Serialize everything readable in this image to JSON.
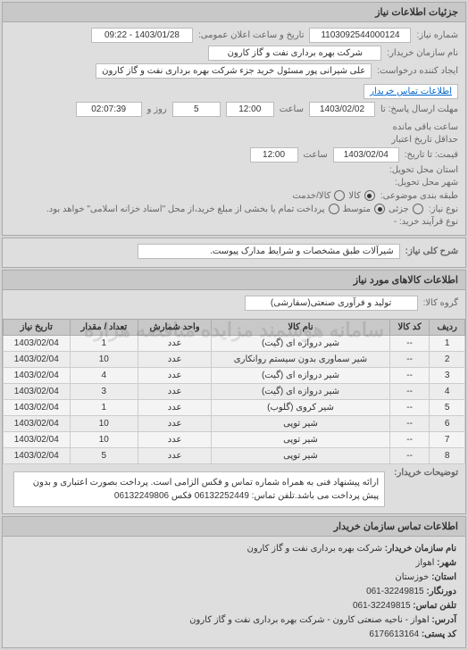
{
  "header": {
    "title": "جزئیات اطلاعات نیاز"
  },
  "info": {
    "request_no_label": "شماره نیاز:",
    "request_no": "1103092544000124",
    "announce_label": "تاریخ و ساعت اعلان عمومی:",
    "announce_value": "1403/01/28 - 09:22",
    "buyer_org_label": "نام سازمان خریدار:",
    "buyer_org": "شرکت بهره برداری نفت و گاز کارون",
    "requester_label": "ایجاد کننده درخواست:",
    "requester": "علی شیرانی پور مسئول خرید جزء شرکت بهره برداری نفت و گاز کارون",
    "buyer_contact_link": "اطلاعات تماس خریدار",
    "send_deadline_label": "مهلت ارسال پاسخ: تا",
    "send_date": "1403/02/02",
    "time_label": "ساعت",
    "send_time": "12:00",
    "remain_day_val": "5",
    "remain_day_label": "روز و",
    "remain_time": "02:07:39",
    "remain_time_label": "ساعت باقی مانده",
    "validity_label": "حداقل تاریخ اعتبار",
    "validity_label2": "قیمت: تا تاریخ:",
    "validity_date": "1403/02/04",
    "validity_time": "12:00",
    "province_label": "استان محل تحویل:",
    "city_label": "شهر محل تحویل:",
    "budget_label": "طبقه بندی موضوعی:",
    "budget_options": {
      "o1": "کالا",
      "o2": "کالا/خدمت"
    },
    "need_type_label": "نوع نیاز:",
    "need_options": {
      "o1": "جزئی",
      "o2": "متوسط",
      "o3": "پرداخت تمام یا بخشی از مبلغ خرید،از محل \"اسناد خزانه اسلامی\" خواهد بود."
    },
    "contract_type_label": "نوع قرآیند خرید: -"
  },
  "desc": {
    "label": "شرح کلی نیاز:",
    "value": "شیرآلات طبق مشخصات و شرایط مدارک پیوست."
  },
  "goods": {
    "title": "اطلاعات کالاهای مورد نیاز",
    "group_label": "گروه کالا:",
    "group_value": "تولید و فرآوری صنعتی(سفارشی)",
    "table": {
      "columns": [
        "ردیف",
        "کد کالا",
        "نام کالا",
        "واحد شمارش",
        "تعداد / مقدار",
        "تاریخ نیاز"
      ],
      "rows": [
        [
          "1",
          "--",
          "شیر دروازه ای (گیت)",
          "عدد",
          "1",
          "1403/02/04"
        ],
        [
          "2",
          "--",
          "شیر سماوری بدون سیستم روانکاری",
          "عدد",
          "10",
          "1403/02/04"
        ],
        [
          "3",
          "--",
          "شیر دروازه ای (گیت)",
          "عدد",
          "4",
          "1403/02/04"
        ],
        [
          "4",
          "--",
          "شیر دروازه ای (گیت)",
          "عدد",
          "3",
          "1403/02/04"
        ],
        [
          "5",
          "--",
          "شیر کروی (گلوب)",
          "عدد",
          "1",
          "1403/02/04"
        ],
        [
          "6",
          "--",
          "شیر توپی",
          "عدد",
          "10",
          "1403/02/04"
        ],
        [
          "7",
          "--",
          "شیر توپی",
          "عدد",
          "10",
          "1403/02/04"
        ],
        [
          "8",
          "--",
          "شیر توپی",
          "عدد",
          "5",
          "1403/02/04"
        ]
      ]
    }
  },
  "notes": {
    "label": "توضیحات خریدار:",
    "text": "ارائه پیشنهاد فنی به همراه شماره تماس و فکس الزامی است. پرداخت بصورت اعتباری و بدون پیش پرداخت می باشد.تلفن تماس: 06132252449 فکس 06132249806"
  },
  "contact": {
    "title": "اطلاعات تماس سازمان خریدار",
    "org_label": "نام سازمان خریدار:",
    "org": "شرکت بهره برداری نفت و گاز کارون",
    "city_label": "شهر:",
    "city": "اهواز",
    "province_label": "استان:",
    "province": "خوزستان",
    "phone_label": "دورنگار:",
    "phone": "32249815-061",
    "fax_label": "تلفن تماس:",
    "fax": "32249815-061",
    "addr_label": "آدرس:",
    "addr": "اهواز - ناحیه صنعتی کارون - شرکت بهره برداری نفت و گاز کارون",
    "post_label": "کد پستی:",
    "post": "6176613164"
  },
  "watermark": "سامانه هوشمند مزایده مناقصه هزاره"
}
